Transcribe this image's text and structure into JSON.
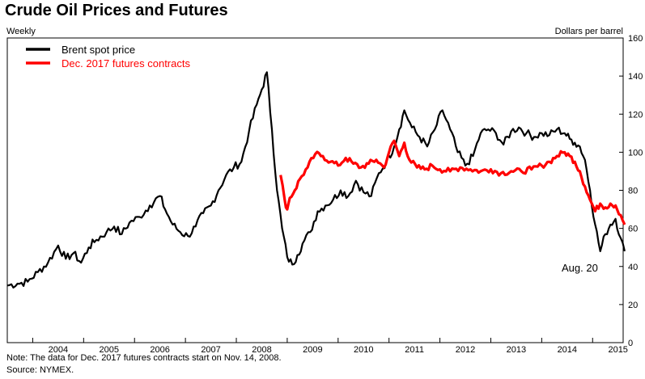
{
  "title": "Crude Oil Prices and Futures",
  "frequency_label": "Weekly",
  "unit_label": "Dollars per barrel",
  "note": "Note:  The data for Dec. 2017 futures contracts start on Nov. 14, 2008.",
  "source": "Source:  NYMEX.",
  "annotation": "Aug. 20",
  "colors": {
    "brent": "#000000",
    "futures": "#ff0000"
  },
  "chart_data": {
    "type": "line",
    "title": "Crude Oil Prices and Futures",
    "ylabel": "Dollars per barrel",
    "xlim": [
      2003.5,
      2015.6
    ],
    "ylim": [
      0,
      160
    ],
    "y_ticks": [
      0,
      20,
      40,
      60,
      80,
      100,
      120,
      140,
      160
    ],
    "x_tick_labels": [
      "2004",
      "2005",
      "2006",
      "2007",
      "2008",
      "2009",
      "2010",
      "2011",
      "2012",
      "2013",
      "2014",
      "2015"
    ],
    "legend_position": "top-left",
    "grid": false,
    "annotations": [
      {
        "text": "Aug. 20",
        "x": 2015.63,
        "y": 48
      }
    ],
    "series": [
      {
        "name": "Brent spot price",
        "color": "#000000",
        "x": [
          2003.5,
          2003.7,
          2003.9,
          2004.1,
          2004.3,
          2004.5,
          2004.65,
          2004.8,
          2004.95,
          2005.1,
          2005.25,
          2005.45,
          2005.6,
          2005.75,
          2005.9,
          2006.1,
          2006.3,
          2006.5,
          2006.6,
          2006.75,
          2006.9,
          2007.05,
          2007.2,
          2007.35,
          2007.5,
          2007.65,
          2007.8,
          2007.95,
          2008.1,
          2008.25,
          2008.4,
          2008.5,
          2008.6,
          2008.7,
          2008.8,
          2008.9,
          2009.0,
          2009.1,
          2009.2,
          2009.3,
          2009.45,
          2009.6,
          2009.75,
          2009.9,
          2010.05,
          2010.2,
          2010.35,
          2010.5,
          2010.65,
          2010.8,
          2010.95,
          2011.1,
          2011.2,
          2011.3,
          2011.45,
          2011.6,
          2011.75,
          2011.9,
          2012.05,
          2012.2,
          2012.35,
          2012.5,
          2012.65,
          2012.8,
          2012.95,
          2013.1,
          2013.25,
          2013.4,
          2013.55,
          2013.7,
          2013.85,
          2014.0,
          2014.15,
          2014.3,
          2014.45,
          2014.55,
          2014.65,
          2014.75,
          2014.85,
          2014.95,
          2015.05,
          2015.15,
          2015.25,
          2015.35,
          2015.45,
          2015.55,
          2015.63
        ],
        "values": [
          30,
          31,
          32,
          37,
          42,
          51,
          44,
          47,
          42,
          50,
          54,
          58,
          61,
          57,
          63,
          66,
          72,
          77,
          70,
          62,
          58,
          56,
          61,
          68,
          72,
          80,
          88,
          92,
          95,
          111,
          125,
          133,
          142,
          112,
          80,
          60,
          45,
          41,
          46,
          52,
          58,
          69,
          72,
          75,
          80,
          77,
          85,
          79,
          77,
          89,
          95,
          103,
          112,
          122,
          113,
          108,
          103,
          112,
          122,
          112,
          100,
          93,
          98,
          110,
          112,
          110,
          104,
          111,
          113,
          110,
          108,
          110,
          109,
          112,
          110,
          107,
          105,
          103,
          96,
          80,
          62,
          48,
          57,
          62,
          65,
          55,
          48
        ]
      },
      {
        "name": "Dec. 2017 futures contracts",
        "color": "#ff0000",
        "x": [
          2008.87,
          2008.95,
          2009.0,
          2009.05,
          2009.15,
          2009.25,
          2009.4,
          2009.55,
          2009.7,
          2009.85,
          2010.0,
          2010.15,
          2010.3,
          2010.45,
          2010.6,
          2010.75,
          2010.9,
          2011.0,
          2011.1,
          2011.2,
          2011.3,
          2011.4,
          2011.55,
          2011.7,
          2011.85,
          2012.0,
          2012.2,
          2012.4,
          2012.6,
          2012.8,
          2013.0,
          2013.2,
          2013.4,
          2013.6,
          2013.8,
          2014.0,
          2014.15,
          2014.3,
          2014.45,
          2014.55,
          2014.65,
          2014.75,
          2014.85,
          2014.95,
          2015.05,
          2015.15,
          2015.25,
          2015.35,
          2015.45,
          2015.55,
          2015.63
        ],
        "values": [
          88,
          75,
          70,
          76,
          80,
          86,
          92,
          99,
          98,
          95,
          93,
          97,
          94,
          92,
          94,
          96,
          92,
          100,
          106,
          98,
          105,
          96,
          92,
          91,
          93,
          91,
          90,
          92,
          91,
          90,
          91,
          89,
          90,
          90,
          91,
          93,
          95,
          98,
          100,
          98,
          95,
          90,
          82,
          75,
          69,
          73,
          71,
          73,
          72,
          67,
          62
        ]
      }
    ]
  }
}
